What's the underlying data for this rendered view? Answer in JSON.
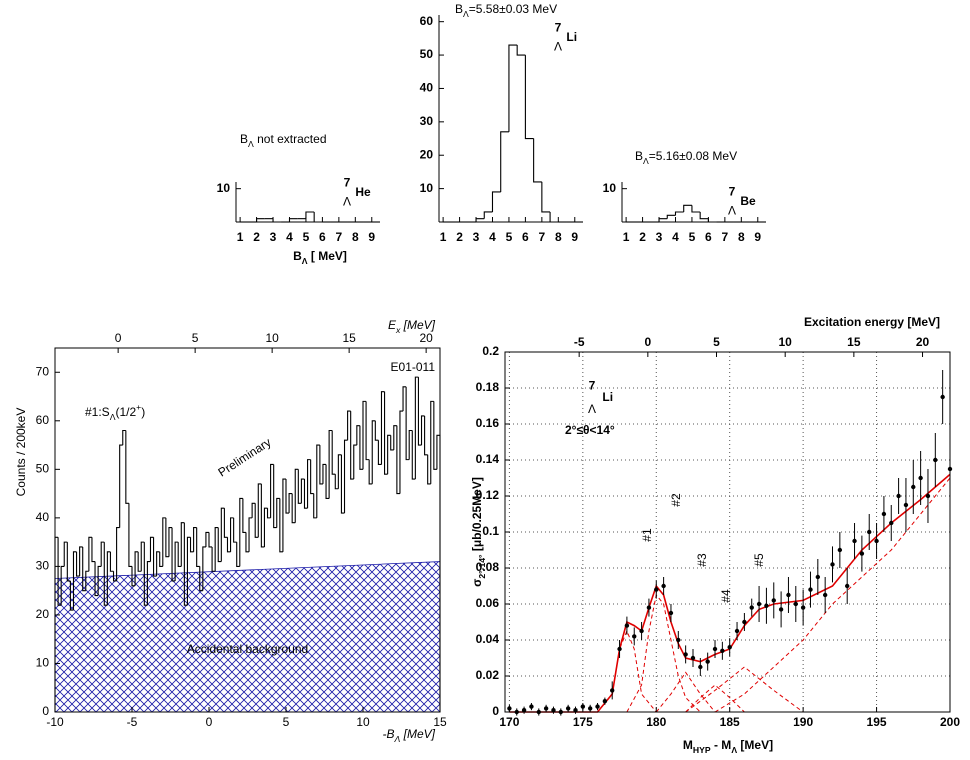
{
  "chart_data": [
    {
      "type": "histogram",
      "bins": [
        1,
        1.5,
        2,
        2.5,
        3,
        3.5,
        4,
        4.5,
        5,
        5.5,
        6,
        6.5,
        7,
        7.5,
        8,
        8.5,
        9,
        9.5
      ],
      "values": [
        0,
        0,
        1,
        1,
        0,
        0,
        1,
        1,
        3,
        0,
        0,
        0,
        0,
        0,
        0,
        0,
        0
      ],
      "color": "#000000",
      "xlim": [
        0.75,
        9.5
      ],
      "ylim": [
        0,
        12
      ],
      "xticks": [
        1,
        2,
        3,
        4,
        5,
        6,
        7,
        8,
        9
      ],
      "yticks": [
        10
      ],
      "annotation": {
        "main": "B",
        "sub": "Λ",
        "rest": " not extracted"
      },
      "nucleus": {
        "mass": "7",
        "hyper": "Λ",
        "element": "He"
      },
      "xlabel": {
        "main": "B",
        "sub": "Λ",
        "rest": " [ MeV]"
      }
    },
    {
      "type": "histogram",
      "bins": [
        1,
        1.5,
        2,
        2.5,
        3,
        3.5,
        4,
        4.5,
        5,
        5.5,
        6,
        6.5,
        7,
        7.5,
        8,
        8.5,
        9,
        9.5
      ],
      "values": [
        0,
        0,
        0,
        0,
        1,
        3,
        9,
        27,
        53,
        50,
        25,
        12,
        3,
        0,
        0,
        0,
        0
      ],
      "color": "#000000",
      "xlim": [
        0.75,
        9.5
      ],
      "ylim": [
        0,
        62
      ],
      "xticks": [
        1,
        2,
        3,
        4,
        5,
        6,
        7,
        8,
        9
      ],
      "yticks": [
        10,
        20,
        30,
        40,
        50,
        60
      ],
      "annotation": {
        "main": "B",
        "sub": "Λ",
        "rest": "=5.58±0.03 MeV"
      },
      "nucleus": {
        "mass": "7",
        "hyper": "Λ",
        "element": "Li"
      }
    },
    {
      "type": "histogram",
      "bins": [
        1,
        1.5,
        2,
        2.5,
        3,
        3.5,
        4,
        4.5,
        5,
        5.5,
        6,
        6.5,
        7,
        7.5,
        8,
        8.5,
        9,
        9.5
      ],
      "values": [
        0,
        0,
        0,
        0,
        1,
        2,
        3,
        5,
        3,
        1,
        0,
        0,
        0,
        0,
        0,
        0,
        0
      ],
      "color": "#000000",
      "xlim": [
        0.75,
        9.5
      ],
      "ylim": [
        0,
        12
      ],
      "xticks": [
        1,
        2,
        3,
        4,
        5,
        6,
        7,
        8,
        9
      ],
      "yticks": [
        10
      ],
      "annotation": {
        "main": "B",
        "sub": "Λ",
        "rest": "=5.16±0.08 MeV"
      },
      "nucleus": {
        "mass": "7",
        "hyper": "Λ",
        "element": "Be"
      }
    },
    {
      "type": "histogram",
      "color": "#000000",
      "bins": [
        -10,
        -9.8,
        -9.6,
        -9.4,
        -9.2,
        -9,
        -8.8,
        -8.6,
        -8.4,
        -8.2,
        -8,
        -7.8,
        -7.6,
        -7.4,
        -7.2,
        -7,
        -6.8,
        -6.6,
        -6.4,
        -6.2,
        -6,
        -5.8,
        -5.6,
        -5.4,
        -5.2,
        -5,
        -4.8,
        -4.6,
        -4.4,
        -4.2,
        -4,
        -3.8,
        -3.6,
        -3.4,
        -3.2,
        -3,
        -2.8,
        -2.6,
        -2.4,
        -2.2,
        -2,
        -1.8,
        -1.6,
        -1.4,
        -1.2,
        -1,
        -0.8,
        -0.6,
        -0.4,
        -0.2,
        0,
        0.2,
        0.4,
        0.6,
        0.8,
        1,
        1.2,
        1.4,
        1.6,
        1.8,
        2,
        2.2,
        2.4,
        2.6,
        2.8,
        3,
        3.2,
        3.4,
        3.6,
        3.8,
        4,
        4.2,
        4.4,
        4.6,
        4.8,
        5,
        5.2,
        5.4,
        5.6,
        5.8,
        6,
        6.2,
        6.4,
        6.6,
        6.8,
        7,
        7.2,
        7.4,
        7.6,
        7.8,
        8,
        8.2,
        8.4,
        8.6,
        8.8,
        9,
        9.2,
        9.4,
        9.6,
        9.8,
        10,
        10.2,
        10.4,
        10.6,
        10.8,
        11,
        11.2,
        11.4,
        11.6,
        11.8,
        12,
        12.2,
        12.4,
        12.6,
        12.8,
        13,
        13.2,
        13.4,
        13.6,
        13.8,
        14,
        14.2,
        14.4,
        14.6,
        14.8,
        15
      ],
      "values": [
        36,
        22,
        30,
        35,
        27,
        21,
        33,
        28,
        34,
        25,
        29,
        36,
        31,
        24,
        30,
        35,
        22,
        33,
        29,
        27,
        38,
        55,
        58,
        43,
        30,
        26,
        33,
        29,
        35,
        22,
        31,
        36,
        28,
        33,
        30,
        40,
        32,
        38,
        27,
        35,
        30,
        39,
        22,
        36,
        33,
        38,
        30,
        25,
        34,
        37,
        34,
        29,
        38,
        31,
        42,
        36,
        33,
        40,
        35,
        30,
        44,
        37,
        33,
        40,
        43,
        36,
        47,
        34,
        42,
        40,
        51,
        38,
        44,
        33,
        48,
        41,
        45,
        39,
        50,
        43,
        48,
        42,
        52,
        45,
        40,
        55,
        47,
        51,
        44,
        58,
        49,
        46,
        53,
        41,
        56,
        62,
        48,
        55,
        59,
        50,
        64,
        52,
        47,
        60,
        56,
        51,
        66,
        49,
        57,
        54,
        59,
        45,
        62,
        67,
        52,
        58,
        48,
        69,
        55,
        61,
        53,
        47,
        64,
        50,
        57
      ],
      "background": {
        "label": "Accidental background",
        "x": [
          -10,
          15
        ],
        "values": [
          27.5,
          31
        ],
        "color": "#1a1aa8"
      },
      "xlim": [
        -10,
        15
      ],
      "xticks": [
        -10,
        -5,
        0,
        5,
        10,
        15
      ],
      "x2lim": [
        -4.1,
        20.9
      ],
      "x2ticks": [
        0,
        5,
        10,
        15,
        20
      ],
      "ylim": [
        0,
        75
      ],
      "yticks": [
        0,
        10,
        20,
        30,
        40,
        50,
        60,
        70
      ],
      "ylabel": "Counts / 200keV",
      "xlabel": {
        "main": "-B",
        "sub": "Λ",
        "rest": " [MeV]"
      },
      "x2label": {
        "main": "E",
        "sub": "x",
        "rest": " [MeV]"
      },
      "experiment": "E01-011",
      "preliminary": "Preliminary",
      "peak_label": {
        "main": "#1:S",
        "sub": "Λ",
        "rest": "(1/2",
        "sup": "+",
        "end": ")"
      }
    },
    {
      "type": "scatter",
      "color": "#000000",
      "grid": true,
      "x": [
        170,
        170.5,
        171,
        171.5,
        172,
        172.5,
        173,
        173.5,
        174,
        174.5,
        175,
        175.5,
        176,
        176.5,
        177,
        177.5,
        178,
        178.5,
        179,
        179.5,
        180,
        180.5,
        181,
        181.5,
        182,
        182.5,
        183,
        183.5,
        184,
        184.5,
        185,
        185.5,
        186,
        186.5,
        187,
        187.5,
        188,
        188.5,
        189,
        189.5,
        190,
        190.5,
        191,
        191.5,
        192,
        192.5,
        193,
        193.5,
        194,
        194.5,
        195,
        195.5,
        196,
        196.5,
        197,
        197.5,
        198,
        198.5,
        199,
        199.5,
        200
      ],
      "values": [
        0.002,
        0,
        0.001,
        0.003,
        0,
        0.002,
        0.001,
        0,
        0.002,
        0.001,
        0.003,
        0.002,
        0.003,
        0.006,
        0.012,
        0.035,
        0.048,
        0.042,
        0.045,
        0.058,
        0.068,
        0.07,
        0.055,
        0.04,
        0.032,
        0.03,
        0.025,
        0.028,
        0.035,
        0.034,
        0.036,
        0.045,
        0.05,
        0.058,
        0.06,
        0.059,
        0.062,
        0.057,
        0.065,
        0.06,
        0.058,
        0.068,
        0.075,
        0.065,
        0.082,
        0.09,
        0.07,
        0.095,
        0.088,
        0.1,
        0.095,
        0.11,
        0.105,
        0.12,
        0.115,
        0.125,
        0.13,
        0.12,
        0.14,
        0.175,
        0.135
      ],
      "errors": [
        0.002,
        0.002,
        0.002,
        0.002,
        0.002,
        0.002,
        0.002,
        0.002,
        0.002,
        0.002,
        0.002,
        0.002,
        0.002,
        0.002,
        0.005,
        0.005,
        0.005,
        0.005,
        0.005,
        0.005,
        0.005,
        0.005,
        0.005,
        0.005,
        0.005,
        0.005,
        0.005,
        0.005,
        0.005,
        0.005,
        0.005,
        0.005,
        0.005,
        0.005,
        0.01,
        0.01,
        0.01,
        0.01,
        0.01,
        0.01,
        0.01,
        0.01,
        0.01,
        0.01,
        0.01,
        0.01,
        0.01,
        0.01,
        0.01,
        0.01,
        0.01,
        0.01,
        0.01,
        0.01,
        0.015,
        0.015,
        0.015,
        0.015,
        0.015,
        0.015,
        0.015
      ],
      "fits": [
        {
          "color": "#e00000",
          "dashed": false,
          "x": [
            170,
            176,
            177,
            177.5,
            178,
            178.5,
            179,
            179.5,
            180,
            180.5,
            181,
            181.5,
            182,
            183,
            184,
            185,
            186,
            187,
            188,
            190,
            192,
            194,
            196,
            198,
            200
          ],
          "values": [
            0,
            0,
            0.01,
            0.035,
            0.05,
            0.048,
            0.045,
            0.058,
            0.07,
            0.065,
            0.05,
            0.038,
            0.03,
            0.028,
            0.032,
            0.035,
            0.048,
            0.057,
            0.06,
            0.062,
            0.07,
            0.09,
            0.105,
            0.118,
            0.132
          ]
        },
        {
          "color": "#e00000",
          "dashed": true,
          "x": [
            176,
            177,
            177.5,
            178,
            178.5,
            179,
            180
          ],
          "values": [
            0,
            0.01,
            0.035,
            0.045,
            0.035,
            0.01,
            0
          ]
        },
        {
          "color": "#e00000",
          "dashed": true,
          "x": [
            178,
            179,
            179.5,
            180,
            180.5,
            181,
            181.5,
            182,
            183
          ],
          "values": [
            0,
            0.015,
            0.045,
            0.065,
            0.06,
            0.04,
            0.02,
            0.008,
            0
          ]
        },
        {
          "color": "#e00000",
          "dashed": true,
          "x": [
            180,
            181,
            182,
            183,
            184
          ],
          "values": [
            0,
            0.01,
            0.022,
            0.01,
            0
          ]
        },
        {
          "color": "#e00000",
          "dashed": true,
          "x": [
            182,
            183,
            184,
            185,
            186
          ],
          "values": [
            0,
            0.008,
            0.015,
            0.008,
            0
          ]
        },
        {
          "color": "#e00000",
          "dashed": true,
          "x": [
            182,
            184,
            186,
            188,
            190
          ],
          "values": [
            0,
            0.012,
            0.025,
            0.012,
            0
          ]
        },
        {
          "color": "#e00000",
          "dashed": true,
          "x": [
            184,
            186,
            188,
            190,
            192,
            194,
            196,
            198,
            200
          ],
          "values": [
            0,
            0.01,
            0.025,
            0.04,
            0.06,
            0.075,
            0.09,
            0.11,
            0.13
          ]
        }
      ],
      "xlim": [
        169.7,
        200
      ],
      "xticks": [
        170,
        175,
        180,
        185,
        190,
        195,
        200
      ],
      "x2lim": [
        -10.4,
        22
      ],
      "x2ticks": [
        -5,
        0,
        5,
        10,
        15,
        20
      ],
      "ylim": [
        0,
        0.2
      ],
      "yticks": [
        0,
        0.02,
        0.04,
        0.06,
        0.08,
        0.1,
        0.12,
        0.14,
        0.16,
        0.18,
        0.2
      ],
      "x2label": "Excitation energy [MeV]",
      "ylabel": {
        "main": "σ",
        "sub": "2°-14°",
        "rest": " [μb/0.25MeV]"
      },
      "xlabel": {
        "main": "M",
        "sub": "HYP",
        "mid": " - M",
        "sub2": "Λ",
        "rest": " [MeV]"
      },
      "nucleus": {
        "mass": "7",
        "hyper": "Λ",
        "element": "Li"
      },
      "angle": "2°≤θ<14°",
      "peak_labels": [
        "#1",
        "#2",
        "#3",
        "#4",
        "#5"
      ]
    }
  ]
}
